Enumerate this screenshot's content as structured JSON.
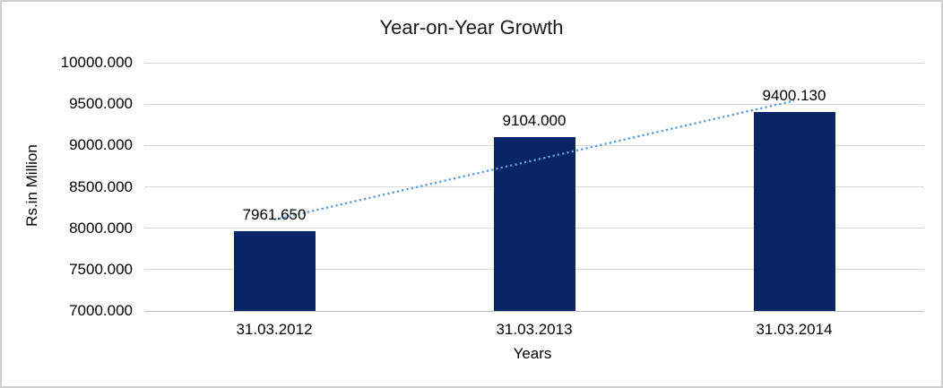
{
  "chart_data": {
    "type": "bar",
    "title": "Year-on-Year Growth",
    "xlabel": "Years",
    "ylabel": "Rs.in Million",
    "categories": [
      "31.03.2012",
      "31.03.2013",
      "31.03.2014"
    ],
    "values": [
      7961.65,
      9104.0,
      9400.13
    ],
    "data_labels": [
      "7961.650",
      "9104.000",
      "9400.130"
    ],
    "ytick_labels": [
      "10000.000",
      "9500.000",
      "9000.000",
      "8500.000",
      "8000.000",
      "7500.000",
      "7000.000"
    ],
    "ylim": [
      7000,
      10000
    ],
    "grid": true,
    "legend": "none",
    "trendline": {
      "type": "linear",
      "style": "dotted",
      "color": "#5b9bd5"
    },
    "colors": {
      "bar": "#082666",
      "gridline": "#d9d9d9",
      "axis_line": "#bfbfbf",
      "text": "#000000",
      "frame": "#cfcfcf",
      "background": "#ffffff"
    }
  }
}
